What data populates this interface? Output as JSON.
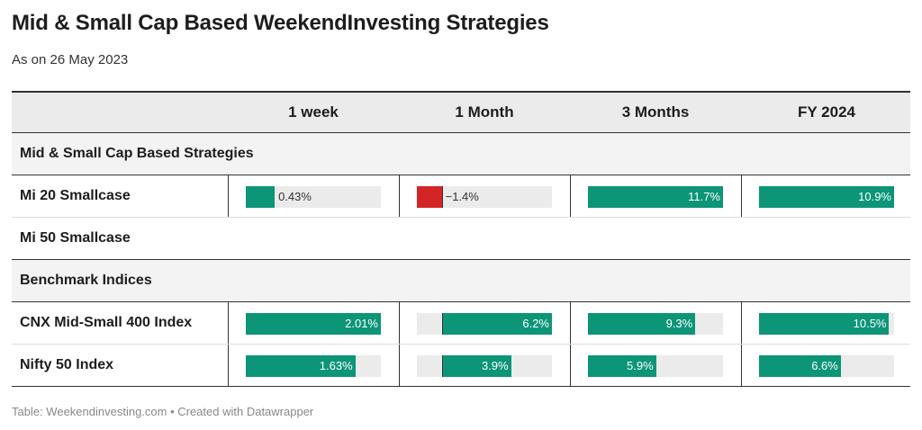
{
  "title": "Mid & Small Cap Based WeekendInvesting Strategies",
  "subtitle": "As on 26 May 2023",
  "footer": "Table: Weekendinvesting.com • Created with Datawrapper",
  "colors": {
    "positive": "#0c9577",
    "negative": "#d42526",
    "track": "#ebebeb"
  },
  "chart_data": {
    "type": "table",
    "columns": [
      "",
      "1 week",
      "1 Month",
      "3 Months",
      "FY 2024"
    ],
    "ranges": [
      [
        0,
        2.01
      ],
      [
        -1.4,
        6.2
      ],
      [
        0,
        11.7
      ],
      [
        0,
        10.9
      ]
    ],
    "groups": [
      {
        "name": "Mid & Small Cap Based Strategies",
        "rows": [
          {
            "name": "Mi 20 Smallcase",
            "values": [
              0.43,
              -1.4,
              11.7,
              10.9
            ],
            "labels": [
              "0.43%",
              "−1.4%",
              "11.7%",
              "10.9%"
            ]
          },
          {
            "name": "Mi 50 Smallcase",
            "values": [
              null,
              null,
              null,
              null
            ],
            "labels": [
              "",
              "",
              "",
              ""
            ]
          }
        ]
      },
      {
        "name": "Benchmark Indices",
        "rows": [
          {
            "name": "CNX Mid-Small 400 Index",
            "values": [
              2.01,
              6.2,
              9.3,
              10.5
            ],
            "labels": [
              "2.01%",
              "6.2%",
              "9.3%",
              "10.5%"
            ]
          },
          {
            "name": "Nifty 50 Index",
            "values": [
              1.63,
              3.9,
              5.9,
              6.6
            ],
            "labels": [
              "1.63%",
              "3.9%",
              "5.9%",
              "6.6%"
            ]
          }
        ]
      }
    ]
  }
}
